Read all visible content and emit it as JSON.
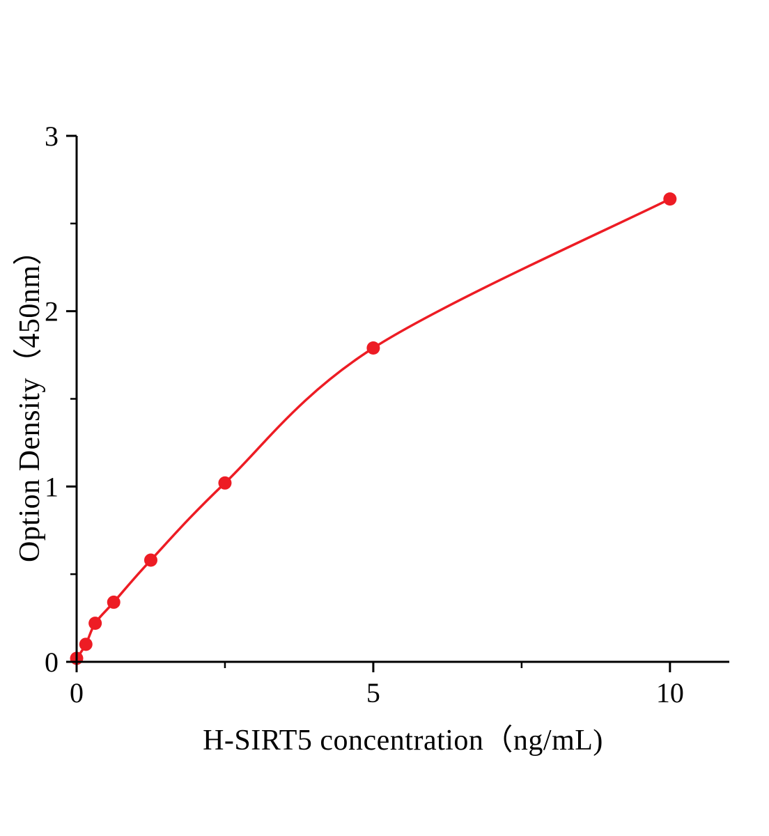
{
  "chart_data": {
    "type": "scatter",
    "title": "",
    "xlabel": "H-SIRT5 concentration（ng/mL)",
    "ylabel": "Option Density（450nm）",
    "x": [
      0,
      0.156,
      0.313,
      0.625,
      1.25,
      2.5,
      5,
      10
    ],
    "y": [
      0.02,
      0.1,
      0.22,
      0.34,
      0.58,
      1.02,
      1.79,
      2.64
    ],
    "curve": "smooth-fit-line",
    "xlim": [
      0,
      11
    ],
    "ylim": [
      0,
      3
    ],
    "x_major_ticks": [
      0,
      5,
      10
    ],
    "x_minor_ticks": [
      2.5,
      7.5
    ],
    "y_major_ticks": [
      0,
      1,
      2,
      3
    ],
    "y_minor_ticks": [
      0.5,
      1.5,
      2.5
    ],
    "x_tick_labels": [
      "0",
      "5",
      "10"
    ],
    "y_tick_labels": [
      "0",
      "1",
      "2",
      "3"
    ],
    "line_color": "#ed1c24",
    "marker_color": "#ed1c24",
    "axis_color": "#000000",
    "background_color": "#ffffff",
    "legend": "none",
    "grid": "off"
  }
}
